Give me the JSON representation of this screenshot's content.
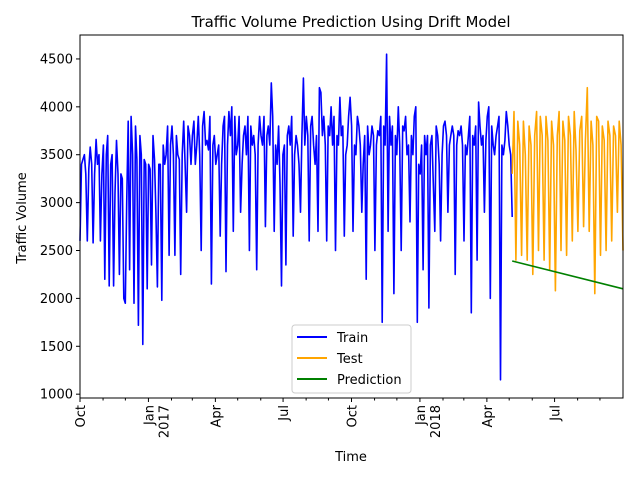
{
  "chart_data": {
    "type": "line",
    "title": "Traffic Volume Prediction Using Drift Model",
    "xlabel": "Time",
    "ylabel": "Traffic Volume",
    "ylim": [
      960,
      4750
    ],
    "xlim_days": [
      0,
      730
    ],
    "yticks": [
      1000,
      1500,
      2000,
      2500,
      3000,
      3500,
      4000,
      4500
    ],
    "xticks": [
      {
        "day": 0,
        "label": "Oct",
        "sub": ""
      },
      {
        "day": 92,
        "label": "Jan",
        "sub": "2017"
      },
      {
        "day": 182,
        "label": "Apr",
        "sub": ""
      },
      {
        "day": 273,
        "label": "Jul",
        "sub": ""
      },
      {
        "day": 365,
        "label": "Oct",
        "sub": ""
      },
      {
        "day": 457,
        "label": "Jan",
        "sub": "2018"
      },
      {
        "day": 547,
        "label": "Apr",
        "sub": ""
      },
      {
        "day": 638,
        "label": "Jul",
        "sub": ""
      }
    ],
    "minor_tick_days": [
      31,
      61,
      123,
      151,
      212,
      243,
      304,
      334,
      396,
      426,
      488,
      516,
      577,
      608,
      669,
      699
    ],
    "series": [
      {
        "name": "Train",
        "color": "#0000ff",
        "x_start_day": 0,
        "x_step_days": 1,
        "values": [
          2600,
          3400,
          3450,
          3500,
          3300,
          2600,
          3350,
          3580,
          3400,
          2580,
          3300,
          3660,
          3400,
          3500,
          2600,
          3300,
          3600,
          2200,
          3500,
          3700,
          2130,
          3400,
          3500,
          2130,
          3100,
          3650,
          3300,
          2250,
          3300,
          3250,
          2000,
          1950,
          3000,
          3850,
          2300,
          3900,
          3500,
          1950,
          3800,
          3450,
          1720,
          3700,
          3500,
          1520,
          3450,
          3400,
          2100,
          3400,
          3350,
          2350,
          3700,
          3450,
          2900,
          2120,
          3400,
          3400,
          1980,
          3600,
          3400,
          3500,
          3800,
          2450,
          3600,
          3800,
          3500,
          2450,
          3700,
          3500,
          3450,
          2250,
          3500,
          3850,
          3400,
          2900,
          3800,
          3700,
          3400,
          3700,
          3850,
          3400,
          3600,
          3900,
          3500,
          2500,
          3800,
          3950,
          3600,
          3650,
          3550,
          3900,
          2150,
          3600,
          3700,
          3400,
          3500,
          3600,
          2650,
          3400,
          3800,
          3900,
          2280,
          3600,
          3950,
          3700,
          4000,
          2700,
          3900,
          3500,
          3600,
          3900,
          2900,
          3400,
          3700,
          3800,
          3500,
          3900,
          2500,
          3800,
          3600,
          3700,
          3500,
          2300,
          3600,
          3900,
          3700,
          3600,
          3900,
          2750,
          3700,
          3800,
          3600,
          4250,
          3900,
          2700,
          3600,
          3400,
          3800,
          3200,
          2130,
          3500,
          3600,
          2350,
          3700,
          3800,
          3600,
          3900,
          2650,
          3500,
          3700,
          3600,
          3400,
          2900,
          3700,
          4300,
          3600,
          3900,
          3700,
          2600,
          3800,
          3900,
          3600,
          3400,
          3700,
          2700,
          4200,
          4150,
          3700,
          3900,
          3600,
          2600,
          3800,
          3700,
          4000,
          3600,
          3900,
          2500,
          3700,
          3600,
          4100,
          3700,
          3800,
          2650,
          3500,
          3600,
          3900,
          4100,
          3800,
          2700,
          3600,
          3500,
          3900,
          3800,
          3600,
          2900,
          3400,
          3700,
          2200,
          3800,
          3500,
          3600,
          3800,
          3700,
          2500,
          3600,
          3750,
          3700,
          3900,
          1750,
          3800,
          3600,
          4550,
          2700,
          3900,
          3600,
          3800,
          2050,
          3700,
          3500,
          4000,
          3600,
          2500,
          3800,
          3750,
          3900,
          3500,
          3600,
          2800,
          3700,
          3500,
          3900,
          4000,
          1750,
          3400,
          3300,
          3600,
          2300,
          3700,
          3500,
          3700,
          1900,
          3600,
          3700,
          3200,
          2700,
          3800,
          3700,
          3400,
          2600,
          3500,
          3800,
          3850,
          3700,
          2900,
          3600,
          3700,
          3800,
          3700,
          2250,
          3600,
          3750,
          3700,
          3800,
          3600,
          2600,
          3600,
          3500,
          3700,
          3900,
          1850,
          3700,
          3600,
          3800,
          2400,
          4050,
          3800,
          3600,
          3700,
          2900,
          3650,
          3900,
          4000,
          2000,
          3800,
          3600,
          3500,
          3700,
          3800,
          3900,
          1150,
          3600,
          3500,
          3650,
          3950,
          3800,
          3600,
          3500,
          2850
        ],
        "visual_note": "dense daily series; rendered compressed across the plotted date range"
      },
      {
        "name": "Test",
        "color": "#ffa500",
        "x_start_day": 581,
        "x_end_day": 730,
        "values": [
          3300,
          3950,
          2400,
          3850,
          3600,
          2450,
          3850,
          3500,
          2400,
          3800,
          3600,
          2250,
          3700,
          3950,
          2500,
          3900,
          3700,
          2400,
          3900,
          3650,
          2300,
          3850,
          3600,
          2080,
          3700,
          3950,
          2500,
          3850,
          3650,
          2450,
          3900,
          3700,
          2600,
          3950,
          3550,
          2700,
          3750,
          3900,
          2750,
          3650,
          4200,
          2700,
          3850,
          3600,
          2050,
          3900,
          3850,
          2450,
          3800,
          3650,
          2500,
          3850,
          3700,
          2600,
          3800,
          3700,
          2900,
          3850,
          3600,
          2500
        ]
      },
      {
        "name": "Prediction",
        "color": "#008000",
        "x": [
          581,
          730
        ],
        "values": [
          2390,
          2100
        ]
      }
    ],
    "legend": {
      "position": "lower-center",
      "entries": [
        "Train",
        "Test",
        "Prediction"
      ]
    },
    "grid": false
  }
}
